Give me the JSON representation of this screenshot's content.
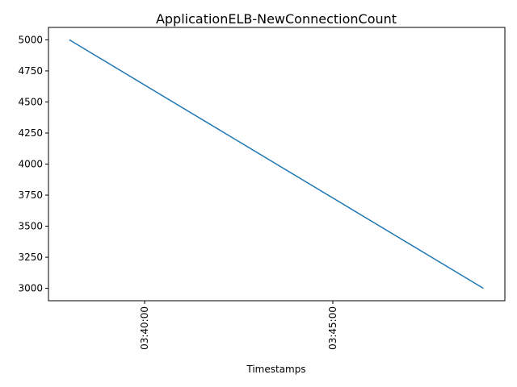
{
  "chart_data": {
    "type": "line",
    "title": "ApplicationELB-NewConnectionCount",
    "xlabel": "Timestamps",
    "ylabel": "",
    "x_ticks": [
      "03:40:00",
      "03:45:00"
    ],
    "y_ticks": [
      3000,
      3250,
      3500,
      3750,
      4000,
      4250,
      4500,
      4750,
      5000
    ],
    "ylim": [
      2900,
      5100
    ],
    "series": [
      {
        "color": "#1f77b4",
        "x": [
          "03:38:00",
          "03:49:00"
        ],
        "values": [
          5000,
          3000
        ]
      }
    ],
    "grid": false,
    "legend": "none"
  }
}
